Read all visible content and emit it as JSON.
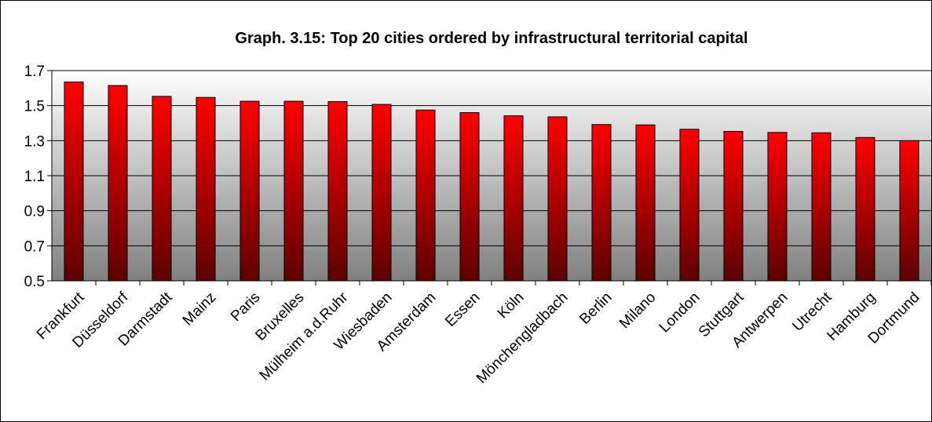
{
  "chart_data": {
    "type": "bar",
    "title": "Graph. 3.15: Top 20 cities ordered by infrastructural territorial capital",
    "xlabel": "",
    "ylabel": "",
    "ylim": [
      0.5,
      1.7
    ],
    "yticks": [
      "0.5",
      "0.7",
      "0.9",
      "1.1",
      "1.3",
      "1.5",
      "1.7"
    ],
    "grid": true,
    "legend": "none",
    "bar_color_top": "#ff0000",
    "bar_color_bottom": "#5c0000",
    "plot_bg_top": "#ffffff",
    "plot_bg_bottom": "#808080",
    "categories": [
      "Frankfurt",
      "Düsseldorf",
      "Darmstadt",
      "Mainz",
      "Paris",
      "Bruxelles",
      "Mülheim a.d.Ruhr",
      "Wiesbaden",
      "Amsterdam",
      "Essen",
      "Köln",
      "Mönchengladbach",
      "Berlin",
      "Milano",
      "London",
      "Stuttgart",
      "Antwerpen",
      "Utrecht",
      "Hamburg",
      "Dortmund"
    ],
    "values": [
      1.635,
      1.615,
      1.553,
      1.547,
      1.525,
      1.525,
      1.523,
      1.507,
      1.475,
      1.46,
      1.442,
      1.436,
      1.392,
      1.39,
      1.365,
      1.353,
      1.347,
      1.345,
      1.318,
      1.3
    ]
  }
}
